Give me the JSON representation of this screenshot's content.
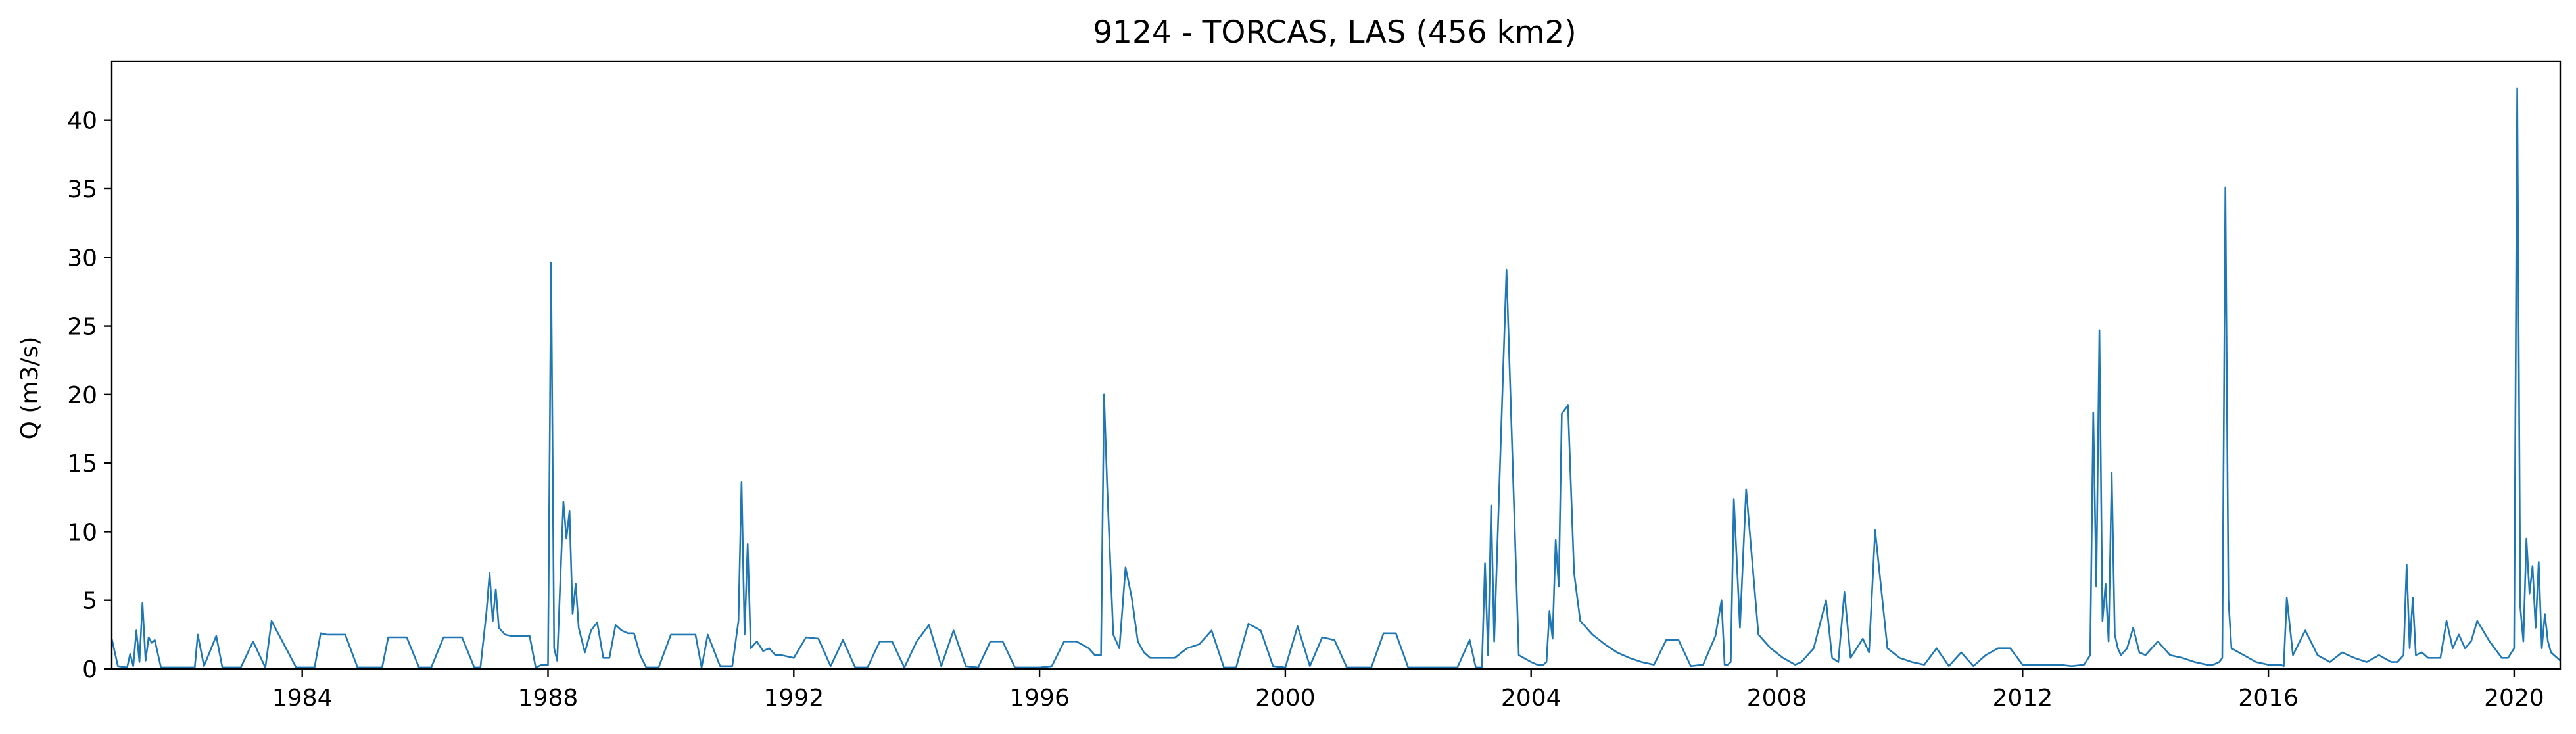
{
  "chart_data": {
    "type": "line",
    "title": "9124 - TORCAS, LAS (456 km2)",
    "xlabel": "",
    "ylabel": "Q (m3/s)",
    "xlim": [
      1980.9,
      2020.75
    ],
    "ylim": [
      0,
      44.3
    ],
    "x_ticks": [
      1984,
      1988,
      1992,
      1996,
      2000,
      2004,
      2008,
      2012,
      2016,
      2020
    ],
    "y_ticks": [
      0,
      5,
      10,
      15,
      20,
      25,
      30,
      35,
      40
    ],
    "grid": false,
    "legend": "none",
    "series": [
      {
        "color": "#1f77b4",
        "x": [
          1980.9,
          1981.0,
          1981.15,
          1981.2,
          1981.25,
          1981.3,
          1981.35,
          1981.4,
          1981.45,
          1981.5,
          1981.55,
          1981.6,
          1981.7,
          1981.8,
          1981.9,
          1982.1,
          1982.25,
          1982.3,
          1982.4,
          1982.6,
          1982.7,
          1982.8,
          1983.0,
          1983.2,
          1983.4,
          1983.5,
          1983.9,
          1984.2,
          1984.3,
          1984.4,
          1984.5,
          1984.6,
          1984.7,
          1984.9,
          1985.3,
          1985.4,
          1985.5,
          1985.6,
          1985.7,
          1985.9,
          1986.1,
          1986.3,
          1986.4,
          1986.5,
          1986.6,
          1986.8,
          1986.9,
          1987.0,
          1987.05,
          1987.1,
          1987.15,
          1987.2,
          1987.3,
          1987.4,
          1987.5,
          1987.6,
          1987.7,
          1987.8,
          1987.9,
          1988.0,
          1988.05,
          1988.1,
          1988.15,
          1988.25,
          1988.3,
          1988.35,
          1988.4,
          1988.45,
          1988.5,
          1988.6,
          1988.7,
          1988.8,
          1988.9,
          1989.0,
          1989.1,
          1989.2,
          1989.3,
          1989.4,
          1989.5,
          1989.6,
          1989.8,
          1990.0,
          1990.2,
          1990.4,
          1990.5,
          1990.6,
          1990.8,
          1991.0,
          1991.1,
          1991.15,
          1991.2,
          1991.25,
          1991.3,
          1991.4,
          1991.5,
          1991.6,
          1991.7,
          1991.8,
          1992.0,
          1992.2,
          1992.4,
          1992.6,
          1992.8,
          1993.0,
          1993.2,
          1993.4,
          1993.6,
          1993.8,
          1994.0,
          1994.2,
          1994.4,
          1994.6,
          1994.8,
          1995.0,
          1995.2,
          1995.4,
          1995.6,
          1995.8,
          1996.0,
          1996.2,
          1996.4,
          1996.6,
          1996.8,
          1996.9,
          1997.0,
          1997.05,
          1997.1,
          1997.2,
          1997.3,
          1997.4,
          1997.5,
          1997.6,
          1997.7,
          1997.8,
          1998.0,
          1998.2,
          1998.4,
          1998.6,
          1998.8,
          1999.0,
          1999.2,
          1999.4,
          1999.6,
          1999.8,
          2000.0,
          2000.2,
          2000.4,
          2000.6,
          2000.8,
          2001.0,
          2001.2,
          2001.4,
          2001.6,
          2001.8,
          2002.0,
          2002.2,
          2002.4,
          2002.6,
          2002.8,
          2003.0,
          2003.1,
          2003.15,
          2003.2,
          2003.25,
          2003.3,
          2003.35,
          2003.4,
          2003.6,
          2003.8,
          2004.0,
          2004.1,
          2004.2,
          2004.25,
          2004.3,
          2004.35,
          2004.4,
          2004.45,
          2004.5,
          2004.6,
          2004.7,
          2004.8,
          2005.0,
          2005.2,
          2005.4,
          2005.6,
          2005.8,
          2006.0,
          2006.2,
          2006.4,
          2006.6,
          2006.8,
          2007.0,
          2007.1,
          2007.15,
          2007.2,
          2007.25,
          2007.3,
          2007.4,
          2007.5,
          2007.7,
          2007.9,
          2008.1,
          2008.3,
          2008.4,
          2008.5,
          2008.6,
          2008.8,
          2008.9,
          2009.0,
          2009.1,
          2009.2,
          2009.3,
          2009.4,
          2009.5,
          2009.6,
          2009.8,
          2010.0,
          2010.2,
          2010.4,
          2010.6,
          2010.8,
          2011.0,
          2011.2,
          2011.4,
          2011.6,
          2011.8,
          2012.0,
          2012.2,
          2012.4,
          2012.6,
          2012.8,
          2013.0,
          2013.1,
          2013.15,
          2013.2,
          2013.25,
          2013.3,
          2013.35,
          2013.4,
          2013.45,
          2013.5,
          2013.55,
          2013.6,
          2013.7,
          2013.8,
          2013.9,
          2014.0,
          2014.2,
          2014.4,
          2014.6,
          2014.8,
          2015.0,
          2015.1,
          2015.2,
          2015.25,
          2015.3,
          2015.35,
          2015.4,
          2015.6,
          2015.8,
          2016.0,
          2016.1,
          2016.2,
          2016.25,
          2016.3,
          2016.4,
          2016.6,
          2016.8,
          2017.0,
          2017.2,
          2017.4,
          2017.6,
          2017.8,
          2018.0,
          2018.1,
          2018.2,
          2018.25,
          2018.3,
          2018.35,
          2018.4,
          2018.5,
          2018.6,
          2018.8,
          2018.9,
          2019.0,
          2019.1,
          2019.2,
          2019.3,
          2019.4,
          2019.6,
          2019.8,
          2019.9,
          2020.0,
          2020.05,
          2020.1,
          2020.15,
          2020.2,
          2020.25,
          2020.3,
          2020.35,
          2020.4,
          2020.45,
          2020.5,
          2020.55,
          2020.6,
          2020.7,
          2020.75
        ],
        "y": [
          2.2,
          0.2,
          0.1,
          1.1,
          0.2,
          2.8,
          0.5,
          4.8,
          0.6,
          2.3,
          1.9,
          2.1,
          0.1,
          0.1,
          0.1,
          0.1,
          0.1,
          2.5,
          0.2,
          2.4,
          0.1,
          0.1,
          0.1,
          2.0,
          0.1,
          3.5,
          0.1,
          0.1,
          2.6,
          2.5,
          2.5,
          2.5,
          2.5,
          0.1,
          0.1,
          2.3,
          2.3,
          2.3,
          2.3,
          0.1,
          0.1,
          2.3,
          2.3,
          2.3,
          2.3,
          0.1,
          0.1,
          4.2,
          7.0,
          3.5,
          5.8,
          3.0,
          2.5,
          2.4,
          2.4,
          2.4,
          2.4,
          0.1,
          0.3,
          0.3,
          29.6,
          1.5,
          0.6,
          12.2,
          9.5,
          11.5,
          4.0,
          6.2,
          3.0,
          1.2,
          2.8,
          3.4,
          0.8,
          0.8,
          3.2,
          2.8,
          2.6,
          2.6,
          1.0,
          0.1,
          0.1,
          2.5,
          2.5,
          2.5,
          0.1,
          2.5,
          0.2,
          0.2,
          3.5,
          13.6,
          2.5,
          9.1,
          1.5,
          2.0,
          1.3,
          1.5,
          1.0,
          1.0,
          0.8,
          2.3,
          2.2,
          0.2,
          2.1,
          0.1,
          0.1,
          2.0,
          2.0,
          0.1,
          2.0,
          3.2,
          0.2,
          2.8,
          0.2,
          0.1,
          2.0,
          2.0,
          0.1,
          0.1,
          0.1,
          0.2,
          2.0,
          2.0,
          1.5,
          1.0,
          1.0,
          20.0,
          13.4,
          2.5,
          1.5,
          7.4,
          5.2,
          2.0,
          1.2,
          0.8,
          0.8,
          0.8,
          1.5,
          1.8,
          2.8,
          0.1,
          0.1,
          3.3,
          2.8,
          0.2,
          0.1,
          3.1,
          0.2,
          2.3,
          2.1,
          0.1,
          0.1,
          0.1,
          2.6,
          2.6,
          0.1,
          0.1,
          0.1,
          0.1,
          0.1,
          2.1,
          0.1,
          0.1,
          0.1,
          7.7,
          1.0,
          11.9,
          2.0,
          29.1,
          1.0,
          0.5,
          0.3,
          0.3,
          0.5,
          4.2,
          2.2,
          9.4,
          6.0,
          18.6,
          19.2,
          7.0,
          3.5,
          2.5,
          1.8,
          1.2,
          0.8,
          0.5,
          0.3,
          2.1,
          2.1,
          0.2,
          0.3,
          2.4,
          5.0,
          0.3,
          0.3,
          0.5,
          12.4,
          3.0,
          13.1,
          2.5,
          1.5,
          0.8,
          0.3,
          0.5,
          1.0,
          1.5,
          5.0,
          0.8,
          0.5,
          5.6,
          0.8,
          1.5,
          2.2,
          1.2,
          10.1,
          1.5,
          0.8,
          0.5,
          0.3,
          1.5,
          0.2,
          1.2,
          0.2,
          1.0,
          1.5,
          1.5,
          0.3,
          0.3,
          0.3,
          0.3,
          0.2,
          0.3,
          1.0,
          18.7,
          6.0,
          24.7,
          3.5,
          6.2,
          2.0,
          14.3,
          2.5,
          1.5,
          1.0,
          1.5,
          3.0,
          1.2,
          1.0,
          2.0,
          1.0,
          0.8,
          0.5,
          0.3,
          0.3,
          0.5,
          0.8,
          35.1,
          5.0,
          1.5,
          1.0,
          0.5,
          0.3,
          0.3,
          0.3,
          0.2,
          5.2,
          1.0,
          2.8,
          1.0,
          0.5,
          1.2,
          0.8,
          0.5,
          1.0,
          0.5,
          0.5,
          1.0,
          7.6,
          1.5,
          5.2,
          1.0,
          1.2,
          0.8,
          0.8,
          3.5,
          1.5,
          2.5,
          1.5,
          2.0,
          3.5,
          2.0,
          0.8,
          0.8,
          1.5,
          42.3,
          4.5,
          2.0,
          9.5,
          5.5,
          7.5,
          3.0,
          7.8,
          1.5,
          4.0,
          2.0,
          1.2,
          0.8,
          0.6
        ]
      }
    ]
  }
}
